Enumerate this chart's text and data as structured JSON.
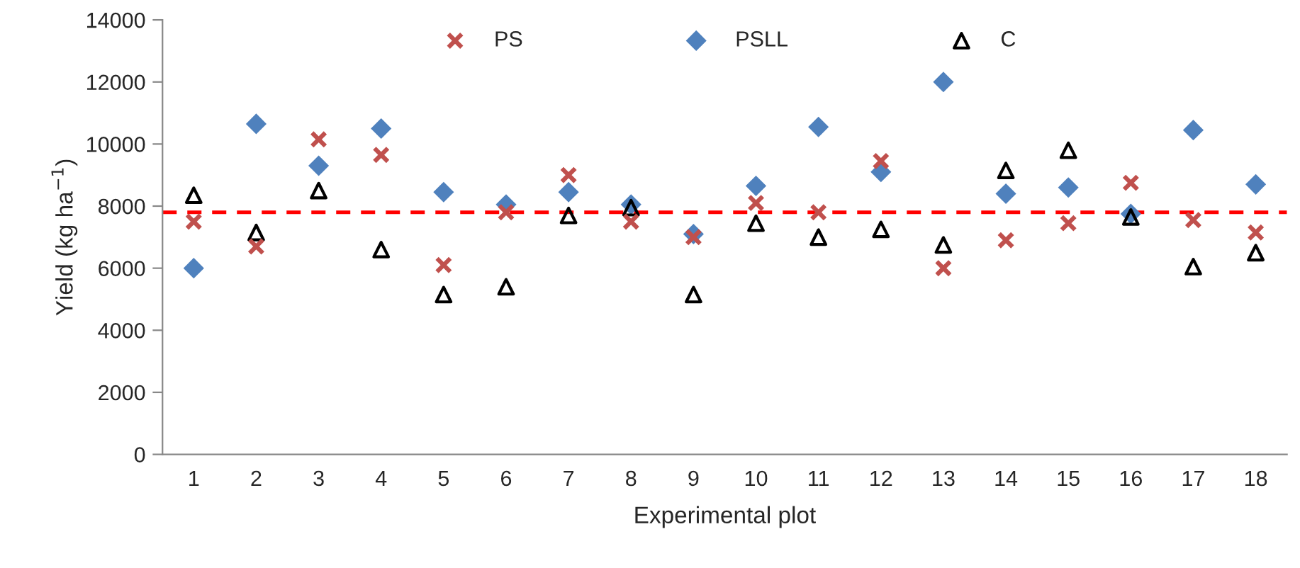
{
  "chart_data": {
    "type": "scatter",
    "xlabel": "Experimental plot",
    "ylabel": "Yield (kg ha$^{−1}$)",
    "categories": [
      "1",
      "2",
      "3",
      "4",
      "5",
      "6",
      "7",
      "8",
      "9",
      "10",
      "11",
      "12",
      "13",
      "14",
      "15",
      "16",
      "17",
      "18"
    ],
    "series": [
      {
        "name": "PS",
        "color": "#c0504d",
        "marker": "cross",
        "values": [
          7500,
          6700,
          10150,
          9650,
          6100,
          7800,
          9000,
          7500,
          7000,
          8100,
          7800,
          9450,
          6000,
          6900,
          7450,
          8750,
          7550,
          7150
        ]
      },
      {
        "name": "PSLL",
        "color": "#4f81bd",
        "marker": "diamond",
        "values": [
          6000,
          10650,
          9300,
          10500,
          8450,
          8050,
          8450,
          8050,
          7100,
          8650,
          10550,
          9100,
          12000,
          8400,
          8600,
          7750,
          10450,
          8700
        ]
      },
      {
        "name": "C",
        "color": "#000000",
        "marker": "triangle",
        "values": [
          8350,
          7150,
          8500,
          6600,
          5150,
          5400,
          7700,
          7950,
          5150,
          7450,
          7000,
          7250,
          6750,
          9150,
          9800,
          7650,
          6050,
          6500
        ]
      }
    ],
    "ylim": [
      0,
      14000
    ],
    "yticks": [
      0,
      2000,
      4000,
      6000,
      8000,
      10000,
      12000,
      14000
    ],
    "ref_lines": [
      {
        "axis": "y",
        "value": 7800,
        "color": "#ff0000",
        "line_style": "dashed"
      }
    ],
    "grid": false,
    "legend": "top"
  }
}
